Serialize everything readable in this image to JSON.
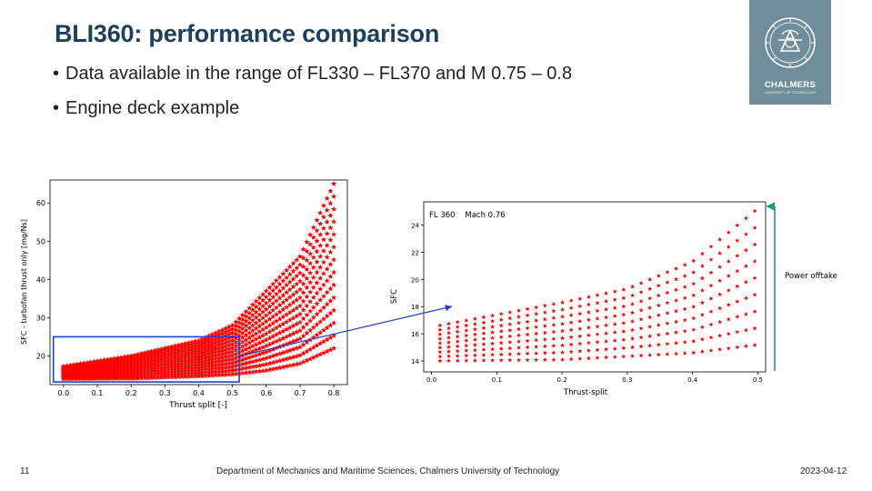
{
  "slide": {
    "title": "BLI360: performance comparison",
    "bullets": [
      "Data available in the range of FL330 – FL370 and M 0.75 – 0.8",
      "Engine deck example"
    ]
  },
  "logo": {
    "name": "CHALMERS",
    "sub": "UNIVERSITY OF TECHNOLOGY",
    "bg": "#6f8d9b"
  },
  "footer": {
    "page": "11",
    "department": "Department of Mechanics and Maritime Sciences, Chalmers University of Technology",
    "date": "2023-04-12"
  },
  "colors": {
    "marker": "#ff0000",
    "highlight": "#1f3fd0",
    "arrow_up": "#1a9a80",
    "title": "#1b3f5c"
  },
  "annotation": {
    "power_offtake": "Power offtake"
  },
  "chart_data": [
    {
      "type": "scatter",
      "marker": "star",
      "xlabel": "Thrust split [-]",
      "ylabel": "SFC - turbofan thrust only [mg/Ns]",
      "xlim": [
        -0.04,
        0.84
      ],
      "ylim": [
        12.5,
        66
      ],
      "xticks": [
        0.0,
        0.1,
        0.2,
        0.3,
        0.4,
        0.5,
        0.6,
        0.7,
        0.8
      ],
      "xticklabels": [
        "0.0",
        "0.1",
        "0.2",
        "0.3",
        "0.4",
        "0.5",
        "0.6",
        "0.7",
        "0.8"
      ],
      "yticks": [
        20,
        30,
        40,
        50,
        60
      ],
      "yticklabels": [
        "20",
        "30",
        "40",
        "50",
        "60"
      ],
      "grid": false,
      "description_of_grid": {
        "x_start": 0.0,
        "x_end": 0.8,
        "x_step": 0.01,
        "curves": 14,
        "sfc_at_zero_min": 14.0,
        "sfc_at_zero_max": 17.3
      },
      "envelope_min": [
        [
          0.0,
          14.0
        ],
        [
          0.2,
          14.1
        ],
        [
          0.4,
          14.7
        ],
        [
          0.5,
          15.2
        ],
        [
          0.6,
          16.2
        ],
        [
          0.7,
          18.0
        ],
        [
          0.8,
          22.0
        ]
      ],
      "envelope_max": [
        [
          0.0,
          17.3
        ],
        [
          0.2,
          20.0
        ],
        [
          0.4,
          24.0
        ],
        [
          0.5,
          28.0
        ],
        [
          0.6,
          37.0
        ],
        [
          0.7,
          46.0
        ],
        [
          0.8,
          65.0
        ]
      ],
      "highlight_box": {
        "x": [
          -0.03,
          0.52
        ],
        "y": [
          13.2,
          25.0
        ]
      }
    },
    {
      "type": "scatter",
      "marker": "star",
      "annotation": "FL 360    Mach 0.76",
      "xlabel": "Thrust-split",
      "ylabel": "SFC",
      "xlim": [
        -0.012,
        0.512
      ],
      "ylim": [
        13.2,
        25.7
      ],
      "xticks": [
        0.0,
        0.1,
        0.2,
        0.3,
        0.4,
        0.5
      ],
      "xticklabels": [
        "0.0",
        "0.1",
        "0.2",
        "0.3",
        "0.4",
        "0.5"
      ],
      "yticks": [
        14,
        16,
        18,
        20,
        22,
        24
      ],
      "yticklabels": [
        "14",
        "16",
        "18",
        "20",
        "22",
        "24"
      ],
      "grid": false,
      "description_of_grid": {
        "x_start": 0.013,
        "x_end": 0.496,
        "x_step": 0.0134,
        "curves": 9
      },
      "envelope_min": [
        [
          0.0,
          14.0
        ],
        [
          0.2,
          14.1
        ],
        [
          0.4,
          14.6
        ],
        [
          0.5,
          15.2
        ]
      ],
      "envelope_max": [
        [
          0.0,
          16.5
        ],
        [
          0.2,
          18.3
        ],
        [
          0.3,
          19.3
        ],
        [
          0.4,
          21.3
        ],
        [
          0.5,
          25.2
        ]
      ]
    }
  ]
}
